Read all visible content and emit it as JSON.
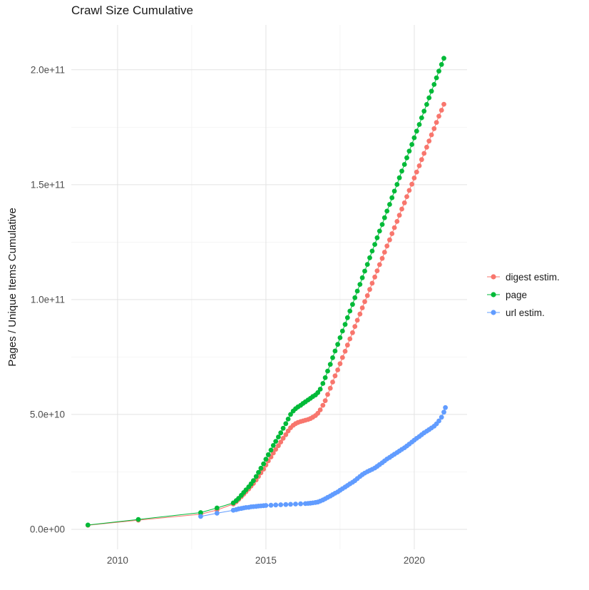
{
  "page": {
    "background": "#ffffff"
  },
  "styles": {
    "axis_text_color": "#4d4d4d",
    "title_color": "#1a1a1a",
    "grid_major_color": "#e3e3e3",
    "grid_minor_color": "#f1f1f1",
    "point_radius": 3.4,
    "line_width": 1
  },
  "chart_data": {
    "type": "scatter",
    "title": "Crawl Size Cumulative",
    "xlabel": "",
    "ylabel": "Pages / Unique Items Cumulative",
    "grid": true,
    "legend_position": "right",
    "x_axis": {
      "lim": [
        2008.44,
        2021.78
      ],
      "ticks": [
        {
          "value": 2010,
          "label": "2010"
        },
        {
          "value": 2015,
          "label": "2015"
        },
        {
          "value": 2020,
          "label": "2020"
        }
      ],
      "minor": [
        2012.5,
        2017.5
      ]
    },
    "y_axis": {
      "unit": 1000000000,
      "lim": [
        -8.7,
        219.5
      ],
      "ticks": [
        {
          "value": 0,
          "label": "0.0e+00"
        },
        {
          "value": 50,
          "label": "5.0e+10"
        },
        {
          "value": 100,
          "label": "1.0e+11"
        },
        {
          "value": 150,
          "label": "1.5e+11"
        },
        {
          "value": 200,
          "label": "2.0e+11"
        }
      ],
      "minor": [
        25,
        75,
        125,
        175
      ]
    },
    "series": [
      {
        "name": "digest estim.",
        "color": "#F8766D",
        "points": [
          [
            2009.0,
            1.8
          ],
          [
            2010.7,
            4.0
          ],
          [
            2012.8,
            6.6
          ],
          [
            2013.35,
            8.4
          ],
          [
            2013.9,
            11.0
          ],
          [
            2014.0,
            12.0
          ],
          [
            2014.08,
            13.0
          ],
          [
            2014.17,
            14.2
          ],
          [
            2014.25,
            15.3
          ],
          [
            2014.33,
            16.4
          ],
          [
            2014.42,
            17.6
          ],
          [
            2014.5,
            18.8
          ],
          [
            2014.58,
            20.0
          ],
          [
            2014.67,
            21.5
          ],
          [
            2014.75,
            23.0
          ],
          [
            2014.83,
            24.6
          ],
          [
            2014.92,
            26.2
          ],
          [
            2015.0,
            28.0
          ],
          [
            2015.08,
            29.8
          ],
          [
            2015.17,
            31.5
          ],
          [
            2015.25,
            33.2
          ],
          [
            2015.33,
            34.8
          ],
          [
            2015.42,
            36.4
          ],
          [
            2015.5,
            38.0
          ],
          [
            2015.58,
            39.6
          ],
          [
            2015.67,
            41.2
          ],
          [
            2015.75,
            42.8
          ],
          [
            2015.83,
            44.2
          ],
          [
            2015.92,
            45.3
          ],
          [
            2016.0,
            46.0
          ],
          [
            2016.08,
            46.5
          ],
          [
            2016.17,
            46.9
          ],
          [
            2016.25,
            47.2
          ],
          [
            2016.33,
            47.5
          ],
          [
            2016.42,
            47.8
          ],
          [
            2016.5,
            48.2
          ],
          [
            2016.58,
            48.8
          ],
          [
            2016.67,
            49.5
          ],
          [
            2016.75,
            50.5
          ],
          [
            2016.83,
            52.0
          ],
          [
            2016.92,
            54.0
          ],
          [
            2017.0,
            56.0
          ],
          [
            2017.08,
            58.7
          ],
          [
            2017.17,
            61.4
          ],
          [
            2017.25,
            64.1
          ],
          [
            2017.33,
            66.8
          ],
          [
            2017.42,
            69.4
          ],
          [
            2017.5,
            72.1
          ],
          [
            2017.58,
            74.8
          ],
          [
            2017.67,
            77.5
          ],
          [
            2017.75,
            80.2
          ],
          [
            2017.83,
            82.9
          ],
          [
            2017.92,
            85.6
          ],
          [
            2018.0,
            88.3
          ],
          [
            2018.08,
            91.0
          ],
          [
            2018.17,
            93.7
          ],
          [
            2018.25,
            96.4
          ],
          [
            2018.33,
            99.1
          ],
          [
            2018.42,
            101.7
          ],
          [
            2018.5,
            104.4
          ],
          [
            2018.58,
            107.1
          ],
          [
            2018.67,
            109.8
          ],
          [
            2018.75,
            112.5
          ],
          [
            2018.83,
            115.2
          ],
          [
            2018.92,
            117.9
          ],
          [
            2019.0,
            120.6
          ],
          [
            2019.08,
            123.3
          ],
          [
            2019.17,
            126.0
          ],
          [
            2019.25,
            128.7
          ],
          [
            2019.33,
            131.3
          ],
          [
            2019.42,
            134.0
          ],
          [
            2019.5,
            136.7
          ],
          [
            2019.58,
            139.4
          ],
          [
            2019.67,
            142.1
          ],
          [
            2019.75,
            144.8
          ],
          [
            2019.83,
            147.5
          ],
          [
            2019.92,
            150.2
          ],
          [
            2020.0,
            152.9
          ],
          [
            2020.08,
            155.5
          ],
          [
            2020.17,
            158.2
          ],
          [
            2020.25,
            160.9
          ],
          [
            2020.33,
            163.6
          ],
          [
            2020.42,
            166.3
          ],
          [
            2020.5,
            169.0
          ],
          [
            2020.58,
            171.7
          ],
          [
            2020.67,
            174.4
          ],
          [
            2020.75,
            177.1
          ],
          [
            2020.83,
            179.8
          ],
          [
            2020.92,
            182.4
          ],
          [
            2021.0,
            185.0
          ]
        ]
      },
      {
        "name": "page",
        "color": "#00BA38",
        "points": [
          [
            2009.0,
            1.9
          ],
          [
            2010.7,
            4.3
          ],
          [
            2012.8,
            7.3
          ],
          [
            2013.35,
            9.3
          ],
          [
            2013.9,
            11.5
          ],
          [
            2014.0,
            12.5
          ],
          [
            2014.08,
            13.5
          ],
          [
            2014.17,
            14.8
          ],
          [
            2014.25,
            16.0
          ],
          [
            2014.33,
            17.2
          ],
          [
            2014.42,
            18.5
          ],
          [
            2014.5,
            19.8
          ],
          [
            2014.58,
            21.2
          ],
          [
            2014.67,
            23.0
          ],
          [
            2014.75,
            24.8
          ],
          [
            2014.83,
            26.6
          ],
          [
            2014.92,
            28.5
          ],
          [
            2015.0,
            30.5
          ],
          [
            2015.08,
            32.5
          ],
          [
            2015.17,
            34.5
          ],
          [
            2015.25,
            36.5
          ],
          [
            2015.33,
            38.3
          ],
          [
            2015.42,
            40.2
          ],
          [
            2015.5,
            42.0
          ],
          [
            2015.58,
            44.0
          ],
          [
            2015.67,
            46.0
          ],
          [
            2015.75,
            48.0
          ],
          [
            2015.83,
            50.0
          ],
          [
            2015.92,
            51.5
          ],
          [
            2016.0,
            52.5
          ],
          [
            2016.08,
            53.3
          ],
          [
            2016.17,
            54.0
          ],
          [
            2016.25,
            54.8
          ],
          [
            2016.33,
            55.5
          ],
          [
            2016.42,
            56.3
          ],
          [
            2016.5,
            57.0
          ],
          [
            2016.58,
            57.8
          ],
          [
            2016.67,
            58.5
          ],
          [
            2016.75,
            59.5
          ],
          [
            2016.83,
            61.0
          ],
          [
            2016.92,
            63.5
          ],
          [
            2017.0,
            66.0
          ],
          [
            2017.08,
            68.9
          ],
          [
            2017.17,
            71.8
          ],
          [
            2017.25,
            74.7
          ],
          [
            2017.33,
            77.6
          ],
          [
            2017.42,
            80.5
          ],
          [
            2017.5,
            83.4
          ],
          [
            2017.58,
            86.3
          ],
          [
            2017.67,
            89.2
          ],
          [
            2017.75,
            92.1
          ],
          [
            2017.83,
            95.0
          ],
          [
            2017.92,
            97.9
          ],
          [
            2018.0,
            100.8
          ],
          [
            2018.08,
            103.7
          ],
          [
            2018.17,
            106.6
          ],
          [
            2018.25,
            109.5
          ],
          [
            2018.33,
            112.4
          ],
          [
            2018.42,
            115.3
          ],
          [
            2018.5,
            118.2
          ],
          [
            2018.58,
            121.1
          ],
          [
            2018.67,
            124.0
          ],
          [
            2018.75,
            126.9
          ],
          [
            2018.83,
            129.8
          ],
          [
            2018.92,
            132.7
          ],
          [
            2019.0,
            135.6
          ],
          [
            2019.08,
            138.5
          ],
          [
            2019.17,
            141.4
          ],
          [
            2019.25,
            144.3
          ],
          [
            2019.33,
            147.2
          ],
          [
            2019.42,
            150.1
          ],
          [
            2019.5,
            153.0
          ],
          [
            2019.58,
            155.9
          ],
          [
            2019.67,
            158.8
          ],
          [
            2019.75,
            161.7
          ],
          [
            2019.83,
            164.6
          ],
          [
            2019.92,
            167.5
          ],
          [
            2020.0,
            170.4
          ],
          [
            2020.08,
            173.3
          ],
          [
            2020.17,
            176.2
          ],
          [
            2020.25,
            179.1
          ],
          [
            2020.33,
            182.0
          ],
          [
            2020.42,
            184.9
          ],
          [
            2020.5,
            187.8
          ],
          [
            2020.58,
            190.7
          ],
          [
            2020.67,
            193.6
          ],
          [
            2020.75,
            196.5
          ],
          [
            2020.83,
            199.4
          ],
          [
            2020.92,
            202.3
          ],
          [
            2021.0,
            205.0
          ]
        ]
      },
      {
        "name": "url estim.",
        "color": "#619CFF",
        "points": [
          [
            2012.8,
            5.6
          ],
          [
            2013.35,
            7.0
          ],
          [
            2013.9,
            8.3
          ],
          [
            2014.0,
            8.6
          ],
          [
            2014.08,
            8.9
          ],
          [
            2014.17,
            9.1
          ],
          [
            2014.25,
            9.3
          ],
          [
            2014.33,
            9.5
          ],
          [
            2014.42,
            9.6
          ],
          [
            2014.5,
            9.8
          ],
          [
            2014.58,
            9.9
          ],
          [
            2014.67,
            10.0
          ],
          [
            2014.75,
            10.1
          ],
          [
            2014.83,
            10.2
          ],
          [
            2014.92,
            10.3
          ],
          [
            2015.0,
            10.4
          ],
          [
            2015.17,
            10.5
          ],
          [
            2015.33,
            10.6
          ],
          [
            2015.5,
            10.7
          ],
          [
            2015.67,
            10.8
          ],
          [
            2015.83,
            10.9
          ],
          [
            2016.0,
            11.0
          ],
          [
            2016.17,
            11.1
          ],
          [
            2016.33,
            11.2
          ],
          [
            2016.42,
            11.3
          ],
          [
            2016.5,
            11.4
          ],
          [
            2016.58,
            11.5
          ],
          [
            2016.67,
            11.7
          ],
          [
            2016.75,
            11.9
          ],
          [
            2016.83,
            12.3
          ],
          [
            2016.92,
            12.8
          ],
          [
            2017.0,
            13.3
          ],
          [
            2017.08,
            13.9
          ],
          [
            2017.17,
            14.5
          ],
          [
            2017.25,
            15.1
          ],
          [
            2017.33,
            15.7
          ],
          [
            2017.42,
            16.3
          ],
          [
            2017.5,
            17.0
          ],
          [
            2017.58,
            17.7
          ],
          [
            2017.67,
            18.4
          ],
          [
            2017.75,
            19.1
          ],
          [
            2017.83,
            19.8
          ],
          [
            2017.92,
            20.5
          ],
          [
            2018.0,
            21.2
          ],
          [
            2018.08,
            22.1
          ],
          [
            2018.17,
            23.0
          ],
          [
            2018.25,
            23.8
          ],
          [
            2018.33,
            24.5
          ],
          [
            2018.42,
            25.1
          ],
          [
            2018.5,
            25.6
          ],
          [
            2018.58,
            26.1
          ],
          [
            2018.67,
            26.7
          ],
          [
            2018.75,
            27.4
          ],
          [
            2018.83,
            28.2
          ],
          [
            2018.92,
            29.0
          ],
          [
            2019.0,
            29.8
          ],
          [
            2019.08,
            30.6
          ],
          [
            2019.17,
            31.3
          ],
          [
            2019.25,
            32.0
          ],
          [
            2019.33,
            32.7
          ],
          [
            2019.42,
            33.4
          ],
          [
            2019.5,
            34.1
          ],
          [
            2019.58,
            34.8
          ],
          [
            2019.67,
            35.5
          ],
          [
            2019.75,
            36.3
          ],
          [
            2019.83,
            37.1
          ],
          [
            2019.92,
            38.0
          ],
          [
            2020.0,
            38.8
          ],
          [
            2020.08,
            39.6
          ],
          [
            2020.17,
            40.4
          ],
          [
            2020.25,
            41.2
          ],
          [
            2020.33,
            42.0
          ],
          [
            2020.42,
            42.7
          ],
          [
            2020.5,
            43.4
          ],
          [
            2020.58,
            44.1
          ],
          [
            2020.67,
            44.9
          ],
          [
            2020.75,
            45.9
          ],
          [
            2020.83,
            47.2
          ],
          [
            2020.92,
            48.8
          ],
          [
            2021.0,
            51.0
          ],
          [
            2021.05,
            53.0
          ]
        ]
      }
    ]
  }
}
